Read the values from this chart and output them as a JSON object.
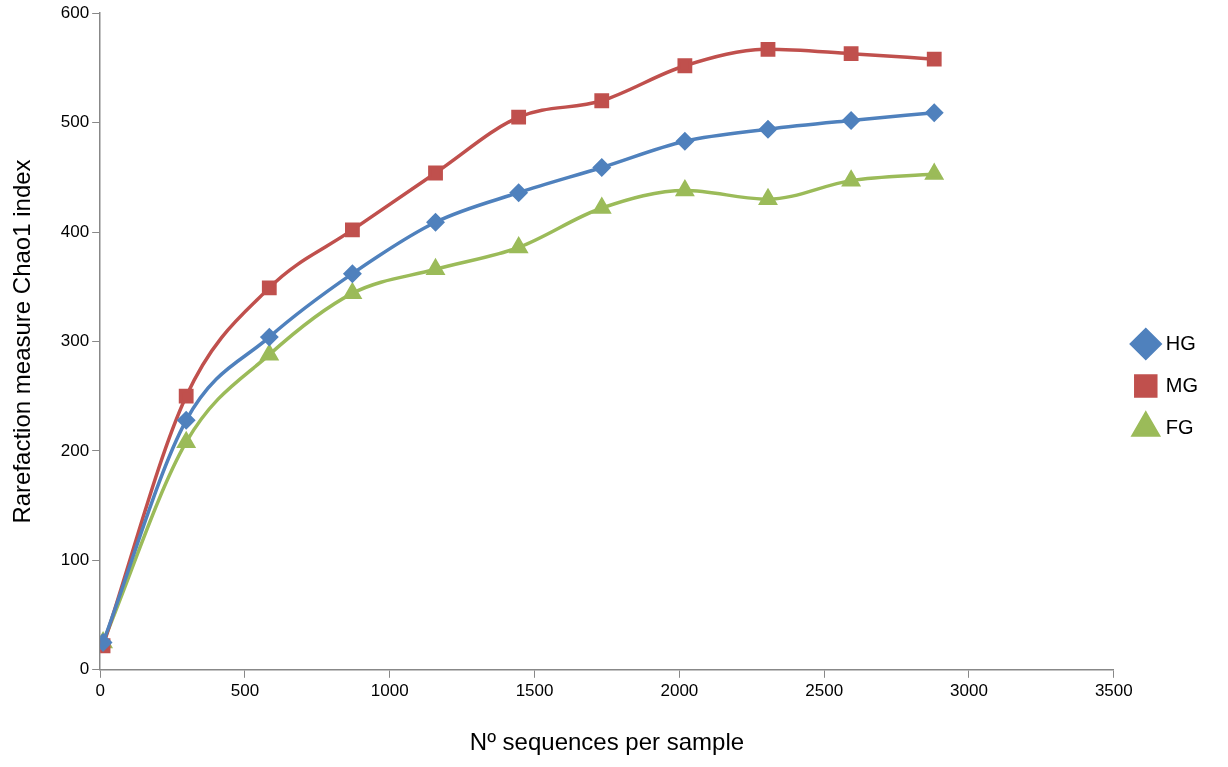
{
  "chart_data": {
    "type": "line",
    "xlabel": "Nº sequences per sample",
    "ylabel": "Rarefaction measure Chao1 index",
    "x": [
      10,
      297,
      584,
      871,
      1158,
      1445,
      1732,
      2019,
      2306,
      2593,
      2880
    ],
    "series": [
      {
        "name": "HG",
        "color": "#4f81bd",
        "marker": "diamond",
        "values": [
          25,
          228,
          304,
          362,
          409,
          436,
          459,
          483,
          494,
          502,
          509
        ]
      },
      {
        "name": "MG",
        "color": "#c0504d",
        "marker": "square",
        "values": [
          22,
          250,
          349,
          402,
          454,
          505,
          520,
          552,
          567,
          563,
          558
        ]
      },
      {
        "name": "FG",
        "color": "#9bbb59",
        "marker": "triangle",
        "values": [
          25,
          208,
          288,
          344,
          366,
          386,
          422,
          438,
          430,
          447,
          453
        ]
      }
    ],
    "xlim": [
      0,
      3500
    ],
    "xticks": [
      0,
      500,
      1000,
      1500,
      2000,
      2500,
      3000,
      3500
    ],
    "ylim": [
      0,
      600
    ],
    "yticks": [
      0,
      100,
      200,
      300,
      400,
      500,
      600
    ],
    "grid": false,
    "legend": "right",
    "line_style": "solid"
  }
}
